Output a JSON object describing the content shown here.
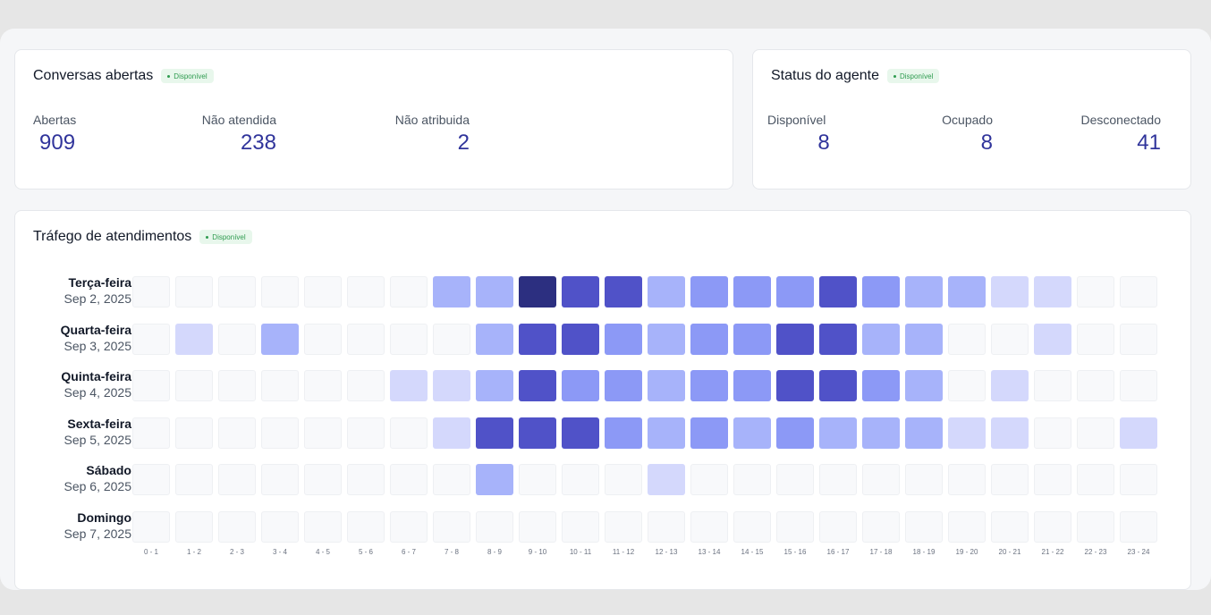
{
  "open_conversations": {
    "title": "Conversas abertas",
    "badge": "Disponível",
    "metrics": [
      {
        "label": "Abertas",
        "value": "909"
      },
      {
        "label": "Não atendida",
        "value": "238"
      },
      {
        "label": "Não atribuida",
        "value": "2"
      }
    ]
  },
  "agent_status": {
    "title": "Status do agente",
    "badge": "Disponível",
    "metrics": [
      {
        "label": "Disponível",
        "value": "8"
      },
      {
        "label": "Ocupado",
        "value": "8"
      },
      {
        "label": "Desconectado",
        "value": "41"
      }
    ]
  },
  "traffic": {
    "title": "Tráfego de atendimentos",
    "badge": "Disponível",
    "colors": [
      "#f8f9fb",
      "#d4d8fc",
      "#a7b3fa",
      "#8c99f6",
      "#5052c8",
      "#2c2f80"
    ],
    "hours": [
      "0 - 1",
      "1 - 2",
      "2 - 3",
      "3 - 4",
      "4 - 5",
      "5 - 6",
      "6 - 7",
      "7 - 8",
      "8 - 9",
      "9 - 10",
      "10 - 11",
      "11 - 12",
      "12 - 13",
      "13 - 14",
      "14 - 15",
      "15 - 16",
      "16 - 17",
      "17 - 18",
      "18 - 19",
      "19 - 20",
      "20 - 21",
      "21 - 22",
      "22 - 23",
      "23 - 24"
    ],
    "rows": [
      {
        "day": "Terça-feira",
        "date": "Sep 2, 2025",
        "levels": [
          0,
          0,
          0,
          0,
          0,
          0,
          0,
          2,
          2,
          5,
          4,
          4,
          2,
          3,
          3,
          3,
          4,
          3,
          2,
          2,
          1,
          1,
          0,
          0
        ]
      },
      {
        "day": "Quarta-feira",
        "date": "Sep 3, 2025",
        "levels": [
          0,
          1,
          0,
          2,
          0,
          0,
          0,
          0,
          2,
          4,
          4,
          3,
          2,
          3,
          3,
          4,
          4,
          2,
          2,
          0,
          0,
          1,
          0,
          0
        ]
      },
      {
        "day": "Quinta-feira",
        "date": "Sep 4, 2025",
        "levels": [
          0,
          0,
          0,
          0,
          0,
          0,
          1,
          1,
          2,
          4,
          3,
          3,
          2,
          3,
          3,
          4,
          4,
          3,
          2,
          0,
          1,
          0,
          0,
          0
        ]
      },
      {
        "day": "Sexta-feira",
        "date": "Sep 5, 2025",
        "levels": [
          0,
          0,
          0,
          0,
          0,
          0,
          0,
          1,
          4,
          4,
          4,
          3,
          2,
          3,
          2,
          3,
          2,
          2,
          2,
          1,
          1,
          0,
          0,
          1
        ]
      },
      {
        "day": "Sábado",
        "date": "Sep 6, 2025",
        "levels": [
          0,
          0,
          0,
          0,
          0,
          0,
          0,
          0,
          2,
          0,
          0,
          0,
          1,
          0,
          0,
          0,
          0,
          0,
          0,
          0,
          0,
          0,
          0,
          0
        ]
      },
      {
        "day": "Domingo",
        "date": "Sep 7, 2025",
        "levels": [
          0,
          0,
          0,
          0,
          0,
          0,
          0,
          0,
          0,
          0,
          0,
          0,
          0,
          0,
          0,
          0,
          0,
          0,
          0,
          0,
          0,
          0,
          0,
          0
        ]
      }
    ]
  }
}
